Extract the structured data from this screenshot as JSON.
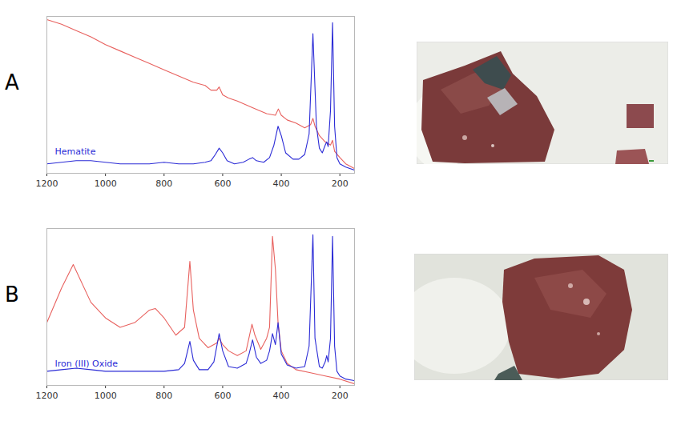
{
  "chart_data": [
    {
      "type": "line",
      "panel_label": "A",
      "xlim": [
        1200,
        150
      ],
      "xticks": [
        1200,
        1000,
        800,
        600,
        400,
        200
      ],
      "ylim": [
        0,
        100
      ],
      "grid": false,
      "tick_labels": "x",
      "legend": "bottom-left",
      "series": [
        {
          "color": "#e8615e",
          "x": [
            1200,
            1150,
            1100,
            1050,
            1000,
            950,
            900,
            850,
            800,
            750,
            700,
            660,
            640,
            620,
            612,
            600,
            580,
            550,
            500,
            450,
            420,
            410,
            400,
            380,
            350,
            320,
            300,
            292,
            285,
            270,
            250,
            240,
            232,
            225,
            218,
            200,
            180,
            150
          ],
          "values": [
            98,
            95,
            91,
            87,
            82,
            78,
            74,
            70,
            66,
            62,
            58,
            56,
            53,
            53,
            55,
            50,
            48,
            46,
            42,
            38,
            37,
            41,
            37,
            34,
            32,
            29,
            31,
            35,
            30,
            24,
            20,
            19,
            18,
            21,
            14,
            10,
            6,
            3
          ]
        },
        {
          "name": "Hematite",
          "color": "#2b2bd6",
          "x": [
            1200,
            1150,
            1100,
            1050,
            1000,
            950,
            900,
            850,
            800,
            750,
            700,
            660,
            640,
            625,
            612,
            600,
            585,
            560,
            530,
            510,
            498,
            485,
            460,
            440,
            425,
            411,
            400,
            385,
            360,
            340,
            320,
            305,
            292,
            280,
            270,
            260,
            250,
            245,
            240,
            232,
            225,
            218,
            210,
            200,
            180,
            150
          ],
          "values": [
            6,
            7,
            8,
            8,
            7,
            6,
            6,
            6,
            7,
            6,
            6,
            7,
            8,
            12,
            16,
            13,
            8,
            6,
            7,
            9,
            10,
            8,
            7,
            10,
            18,
            30,
            24,
            13,
            9,
            9,
            12,
            25,
            89,
            30,
            16,
            13,
            18,
            20,
            17,
            40,
            96,
            30,
            10,
            6,
            4,
            2
          ]
        }
      ]
    },
    {
      "type": "line",
      "panel_label": "B",
      "xlim": [
        1200,
        150
      ],
      "xticks": [
        1200,
        1000,
        800,
        600,
        400,
        200
      ],
      "ylim": [
        0,
        100
      ],
      "grid": false,
      "tick_labels": "x",
      "legend": "bottom-left",
      "series": [
        {
          "color": "#e8615e",
          "x": [
            1200,
            1150,
            1110,
            1050,
            1020,
            1000,
            950,
            900,
            850,
            830,
            800,
            760,
            730,
            712,
            700,
            680,
            650,
            620,
            612,
            600,
            580,
            550,
            520,
            500,
            490,
            470,
            450,
            440,
            430,
            420,
            411,
            400,
            380,
            350,
            300,
            250,
            200,
            150
          ],
          "values": [
            40,
            62,
            77,
            53,
            47,
            43,
            37,
            40,
            48,
            49,
            43,
            32,
            37,
            79,
            48,
            30,
            24,
            27,
            30,
            26,
            22,
            19,
            22,
            39,
            32,
            23,
            30,
            37,
            95,
            74,
            40,
            22,
            14,
            10,
            8,
            6,
            4,
            1
          ]
        },
        {
          "name": "Iron (III) Oxide",
          "color": "#2b2bd6",
          "x": [
            1200,
            1150,
            1100,
            1050,
            1000,
            950,
            900,
            850,
            800,
            750,
            730,
            712,
            700,
            680,
            650,
            630,
            612,
            600,
            580,
            550,
            520,
            510,
            498,
            485,
            470,
            450,
            440,
            430,
            420,
            411,
            400,
            380,
            350,
            320,
            305,
            292,
            285,
            270,
            260,
            250,
            245,
            240,
            232,
            225,
            218,
            210,
            200,
            180,
            150
          ],
          "values": [
            9,
            10,
            11,
            10,
            9,
            9,
            9,
            9,
            9,
            10,
            14,
            28,
            16,
            10,
            10,
            15,
            33,
            22,
            12,
            11,
            14,
            20,
            29,
            18,
            14,
            16,
            22,
            33,
            26,
            40,
            20,
            13,
            11,
            12,
            25,
            96,
            30,
            12,
            11,
            15,
            19,
            15,
            30,
            95,
            25,
            9,
            6,
            4,
            3
          ]
        }
      ]
    }
  ]
}
